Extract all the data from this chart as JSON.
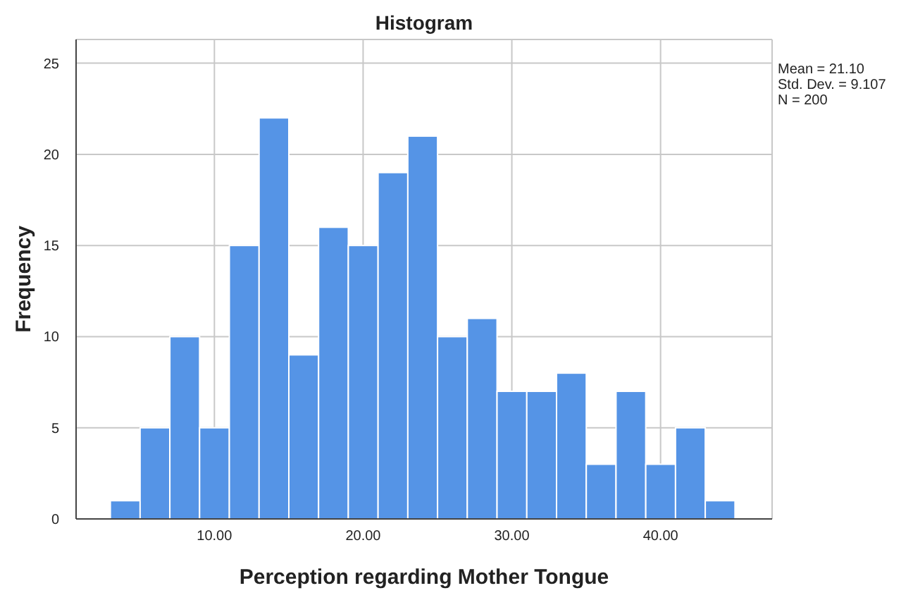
{
  "chart_data": {
    "type": "histogram",
    "title": "Histogram",
    "xlabel": "Perception regarding Mother Tongue",
    "ylabel": "Frequency",
    "bins": [
      3,
      5,
      7,
      9,
      11,
      13,
      15,
      17,
      19,
      21,
      23,
      25,
      27,
      29,
      31,
      33,
      35,
      37,
      39,
      41,
      43,
      45
    ],
    "values": [
      1,
      5,
      10,
      5,
      15,
      22,
      9,
      16,
      15,
      19,
      21,
      10,
      11,
      7,
      7,
      8,
      3,
      7,
      3,
      5,
      1
    ],
    "color": "#5594e6",
    "xlim": [
      0.7,
      47.5
    ],
    "xticks": [
      {
        "value": 10,
        "label": "10.00"
      },
      {
        "value": 20,
        "label": "20.00"
      },
      {
        "value": 30,
        "label": "30.00"
      },
      {
        "value": 40,
        "label": "40.00"
      }
    ],
    "ylim": [
      0,
      26.3
    ],
    "yticks": [
      0,
      5,
      10,
      15,
      20,
      25
    ],
    "grid": true,
    "annotations": [
      "Mean = 21.10",
      "Std. Dev. = 9.107",
      "N = 200"
    ]
  }
}
